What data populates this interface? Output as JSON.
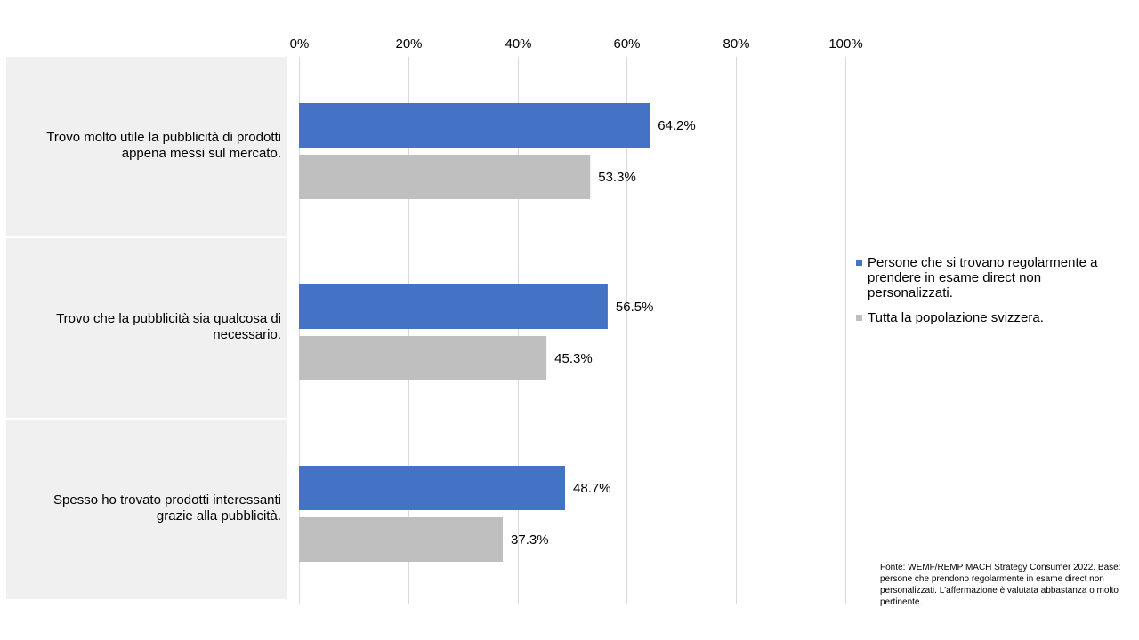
{
  "chart_data": {
    "type": "bar",
    "orientation": "horizontal",
    "categories": [
      [
        "Trovo  molto utile  la pubblicità di prodotti",
        "appena messi sul mercato."
      ],
      [
        "Trovo  che la pubblicità sia qualcosa di",
        "necessario."
      ],
      [
        "Spesso ho trovato prodotti interessanti",
        "grazie alla pubblicità."
      ]
    ],
    "series": [
      {
        "name": "Persone che si trovano regolarmente a prendere in esame direct non personalizzati.",
        "values": [
          64.2,
          56.5,
          48.7
        ],
        "color": "#4472c4"
      },
      {
        "name": "Tutta la popolazione svizzera.",
        "values": [
          53.3,
          45.3,
          37.3
        ],
        "color": "#bfbfbf"
      }
    ],
    "value_labels": [
      [
        "64.2%",
        "56.5%",
        "48.7%"
      ],
      [
        "53.3%",
        "45.3%",
        "37.3%"
      ]
    ],
    "xticks": [
      "0%",
      "20%",
      "40%",
      "60%",
      "80%",
      "100%"
    ],
    "xlim": [
      0,
      100
    ],
    "grid": true,
    "axis_position": "top",
    "legend_position": "right"
  },
  "source_note": "Fonte: WEMF/REMP  MACH Strategy Consumer 2022. Base: persone che prendono regolarmente in  esame direct non personalizzati. L'affermazione è valutata abbastanza o molto pertinente."
}
